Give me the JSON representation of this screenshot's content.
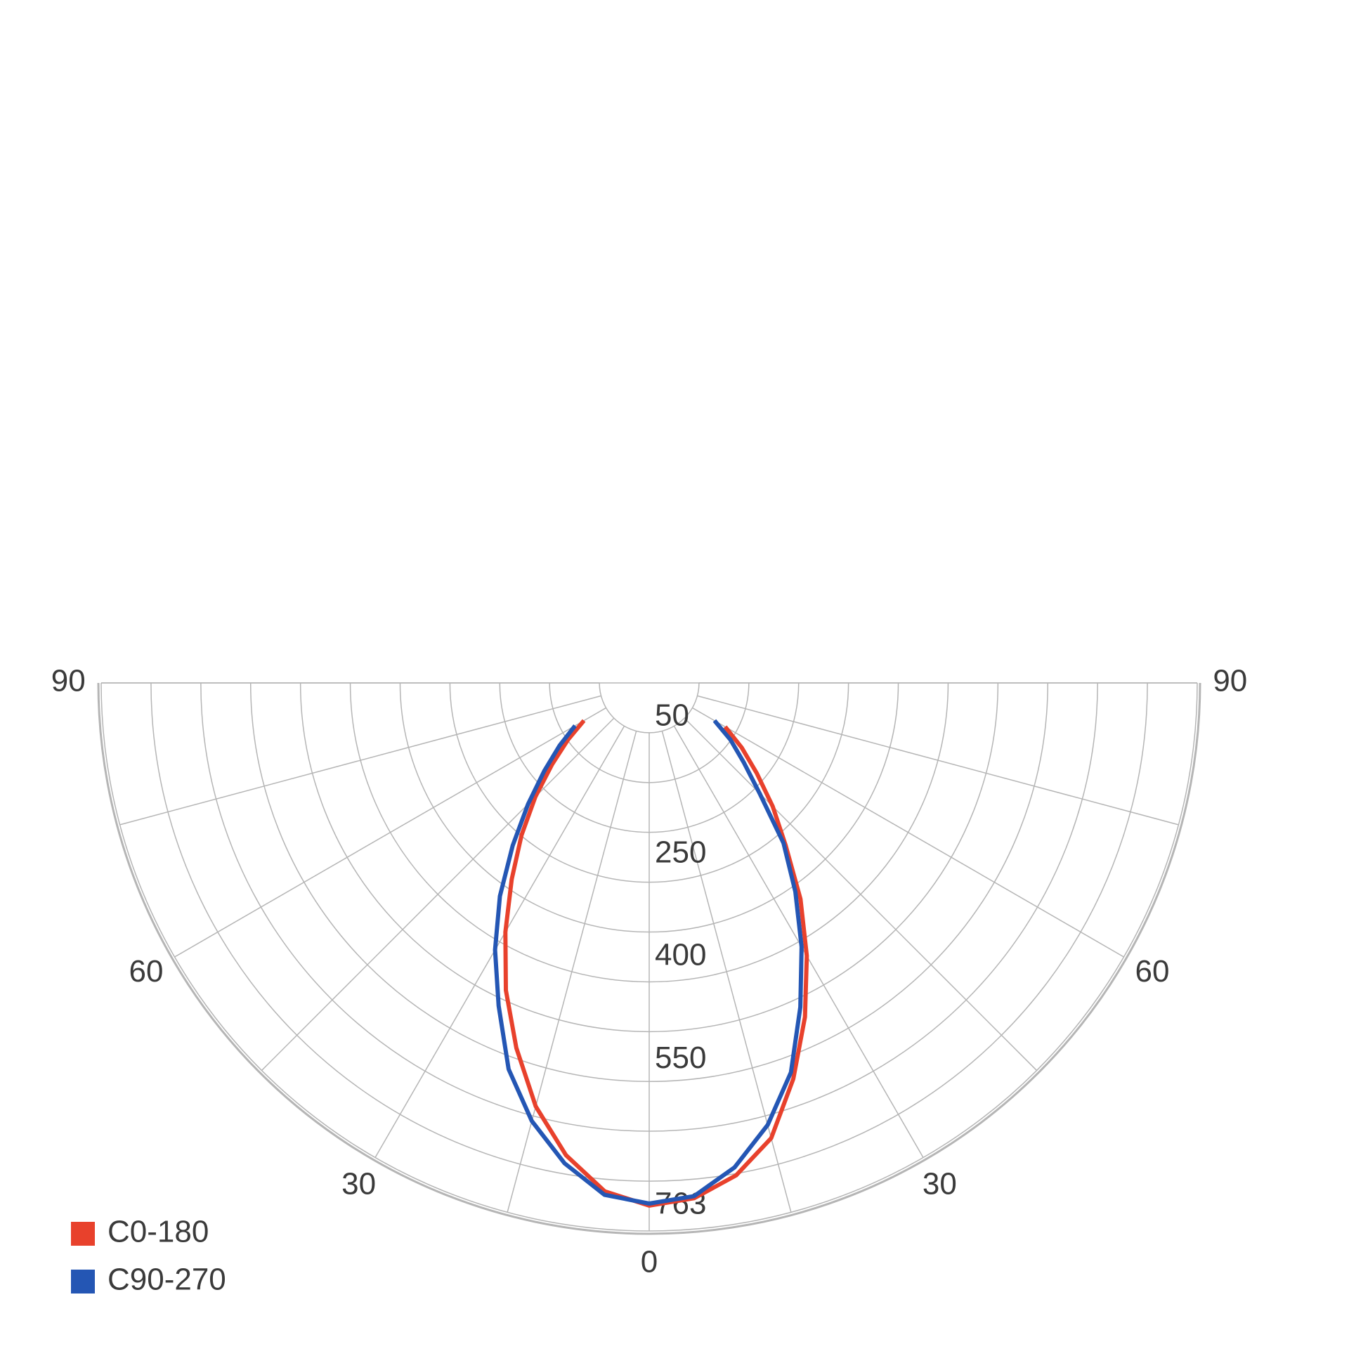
{
  "chart_data": {
    "type": "polar",
    "angles": [
      -60,
      -55,
      -50,
      -45,
      -40,
      -35,
      -30,
      -25,
      -20,
      -15,
      -10,
      -5,
      0,
      5,
      10,
      15,
      20,
      25,
      30,
      35,
      40,
      45,
      50,
      55,
      60
    ],
    "series": [
      {
        "name": "C0-180",
        "color": "#e8412c",
        "values": [
          110,
          145,
          185,
          235,
          290,
          350,
          420,
          495,
          567,
          640,
          700,
          745,
          763,
          755,
          730,
          688,
          615,
          538,
          460,
          385,
          310,
          255,
          205,
          165,
          128
        ]
      },
      {
        "name": "C90-270",
        "color": "#2456b4",
        "values": [
          125,
          160,
          200,
          250,
          310,
          380,
          450,
          520,
          600,
          662,
          712,
          750,
          760,
          752,
          718,
          668,
          605,
          522,
          445,
          372,
          305,
          228,
          180,
          145,
          110
        ]
      }
    ],
    "rlim": [
      0,
      800
    ],
    "rticks": [
      50,
      250,
      400,
      550,
      763
    ],
    "xlim": [
      -90,
      90
    ],
    "xticks": [
      {
        "value": -90,
        "label": "90"
      },
      {
        "value": -60,
        "label": "60"
      },
      {
        "value": -30,
        "label": "30"
      },
      0,
      30,
      60,
      90
    ],
    "legend": "bottom-left"
  }
}
